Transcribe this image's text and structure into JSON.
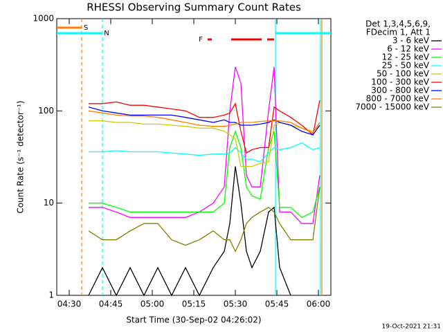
{
  "chart_data": {
    "type": "line",
    "title": "RHESSI Observing Summary Count Rates",
    "x_label": "Start Time (30-Sep-02 04:26:02)",
    "y_label": "Count Rate (s⁻¹ detector⁻¹)",
    "legend_header": [
      "Det 1,3,4,5,6,9,",
      "FDecim 1, Att 1"
    ],
    "footer": "19-Oct-2021 21:31",
    "log_y": true,
    "xlim": [
      25.5,
      124.5
    ],
    "ylim": [
      1,
      1000
    ],
    "xticks": [
      {
        "value": 30,
        "label": "04:30"
      },
      {
        "value": 45,
        "label": "04:45"
      },
      {
        "value": 60,
        "label": "05:00"
      },
      {
        "value": 75,
        "label": "05:15"
      },
      {
        "value": 90,
        "label": "05:30"
      },
      {
        "value": 105,
        "label": "05:45"
      },
      {
        "value": 120,
        "label": "06:00"
      }
    ],
    "yticks": [
      1,
      10,
      100,
      1000
    ],
    "x": [
      37,
      42,
      47,
      52,
      57,
      62,
      67,
      72,
      77,
      82,
      86,
      88,
      90,
      92,
      94,
      96,
      99,
      102,
      104,
      106,
      110,
      114,
      118,
      120.5
    ],
    "series": [
      {
        "name": "3 - 6 keV",
        "color": "#000000",
        "values": [
          1,
          2,
          1,
          2,
          1,
          2,
          1,
          2,
          1,
          2,
          3,
          6,
          25,
          10,
          3,
          2,
          3,
          8,
          9,
          2,
          1,
          null,
          null,
          null
        ]
      },
      {
        "name": "6 - 12 keV",
        "color": "#ff00ff",
        "values": [
          9,
          9,
          8,
          7,
          7,
          7,
          7,
          7,
          8,
          10,
          15,
          100,
          300,
          200,
          20,
          15,
          15,
          100,
          300,
          8,
          8,
          6,
          6,
          20
        ]
      },
      {
        "name": "12 - 25 keV",
        "color": "#00ff00",
        "values": [
          10,
          10,
          9,
          8,
          8,
          8,
          8,
          8,
          8,
          8,
          10,
          40,
          60,
          40,
          15,
          12,
          11,
          40,
          60,
          9,
          9,
          7,
          8,
          15
        ]
      },
      {
        "name": "25 - 50 keV",
        "color": "#00ffff",
        "values": [
          36,
          36,
          37,
          36,
          36,
          36,
          35,
          34,
          33,
          34,
          34,
          35,
          40,
          35,
          30,
          30,
          28,
          35,
          40,
          38,
          40,
          45,
          38,
          40
        ]
      },
      {
        "name": "50 - 100 keV",
        "color": "#cccc00",
        "values": [
          78,
          78,
          75,
          75,
          72,
          72,
          70,
          68,
          65,
          65,
          60,
          55,
          50,
          25,
          25,
          25,
          27,
          28,
          70,
          75,
          70,
          65,
          60,
          70
        ]
      },
      {
        "name": "100 - 300 keV",
        "color": "#ff0000",
        "values": [
          120,
          120,
          125,
          115,
          115,
          110,
          105,
          100,
          85,
          85,
          90,
          95,
          120,
          60,
          35,
          38,
          40,
          40,
          110,
          100,
          85,
          70,
          55,
          130
        ]
      },
      {
        "name": "300 - 800 keV",
        "color": "#0000ff",
        "values": [
          110,
          100,
          95,
          90,
          90,
          90,
          90,
          85,
          80,
          75,
          80,
          75,
          75,
          70,
          70,
          70,
          72,
          75,
          80,
          75,
          70,
          60,
          55,
          70
        ]
      },
      {
        "name": "800 - 7000 keV",
        "color": "#ff8000",
        "values": [
          100,
          95,
          90,
          88,
          88,
          85,
          80,
          75,
          70,
          68,
          68,
          70,
          72,
          75,
          75,
          75,
          77,
          78,
          78,
          78,
          75,
          65,
          58,
          75
        ]
      },
      {
        "name": "7000 - 15000 keV",
        "color": "#808000",
        "values": [
          5,
          4,
          4,
          5,
          6,
          6,
          4,
          3.5,
          4,
          5,
          4,
          4,
          3,
          4,
          6,
          7,
          8,
          9,
          8,
          6,
          4,
          4,
          4,
          15
        ]
      }
    ],
    "flags": [
      {
        "label": "S",
        "color": "#ff8000",
        "label_x": 36,
        "intervals": [
          [
            25.5,
            34.5
          ]
        ]
      },
      {
        "label": "N",
        "color": "#00ffff",
        "label_x": 43.5,
        "intervals": [
          [
            25.5,
            42
          ],
          [
            104.5,
            124.5
          ]
        ]
      },
      {
        "label": "F",
        "color": "#ff0000",
        "label_x": 77.5,
        "intervals": [
          [
            80,
            81.5
          ],
          [
            88.5,
            99.5
          ],
          [
            101.5,
            104
          ]
        ]
      }
    ],
    "vlines": [
      {
        "x": 34.5,
        "color": "#ff8000",
        "dashed": true
      },
      {
        "x": 42,
        "color": "#00ffff",
        "dashed": true
      },
      {
        "x": 104.5,
        "color": "#00ffff",
        "dashed": false
      },
      {
        "x": 120.75,
        "color": "#00ffff",
        "dashed": false
      },
      {
        "x": 121.25,
        "color": "#ff8000",
        "dashed": false
      }
    ]
  }
}
